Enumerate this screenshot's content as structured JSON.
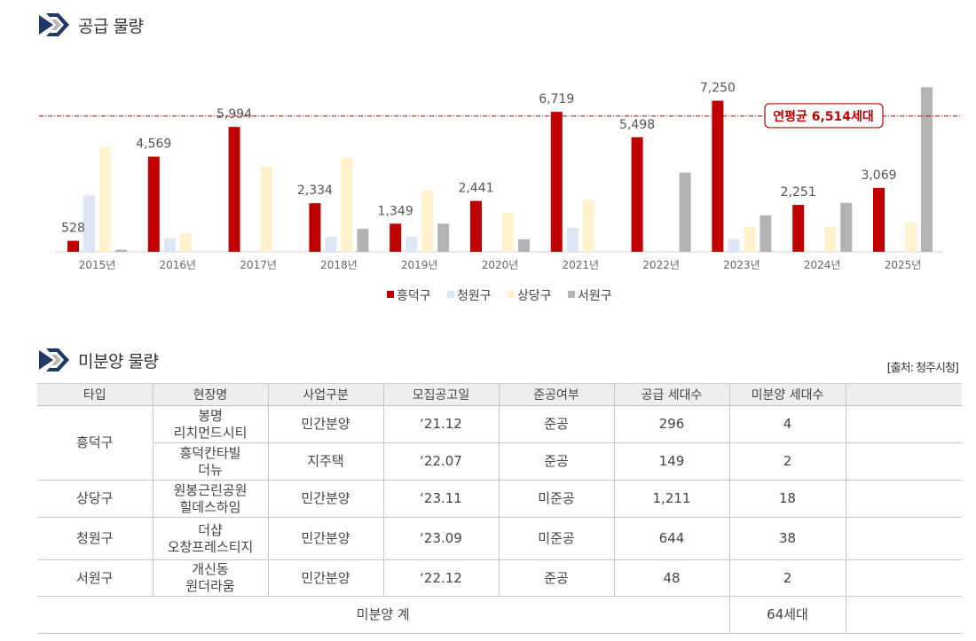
{
  "section1": {
    "title": "공급 물량"
  },
  "section2": {
    "title": "미분양 물량"
  },
  "source": "[출처: 청주시청]",
  "chart_data": {
    "type": "bar",
    "categories": [
      "2015년",
      "2016년",
      "2017년",
      "2018년",
      "2019년",
      "2020년",
      "2021년",
      "2022년",
      "2023년",
      "2024년",
      "2025년"
    ],
    "series": [
      {
        "name": "흥덕구",
        "color": "#c00000",
        "values": [
          528,
          4569,
          5994,
          2334,
          1349,
          2441,
          6719,
          5498,
          7250,
          2251,
          3069
        ]
      },
      {
        "name": "청원구",
        "color": "#dce6f4",
        "values": [
          2700,
          650,
          0,
          720,
          720,
          0,
          1150,
          0,
          600,
          0,
          0
        ]
      },
      {
        "name": "상당구",
        "color": "#fff2cc",
        "values": [
          5020,
          900,
          4100,
          4500,
          2950,
          1870,
          2500,
          0,
          1200,
          1200,
          1400
        ]
      },
      {
        "name": "서원구",
        "color": "#b3b3b3",
        "values": [
          100,
          0,
          0,
          1100,
          1350,
          600,
          0,
          3800,
          1750,
          2350,
          7900
        ]
      }
    ],
    "data_labels": [
      "528",
      "4,569",
      "5,994",
      "2,334",
      "1,349",
      "2,441",
      "6,719",
      "5,498",
      "7,250",
      "2,251",
      "3,069"
    ],
    "average": {
      "value": 6514,
      "label": "연평균 6,514세대",
      "color": "#c00000"
    },
    "legend_position": "bottom",
    "grid": false
  },
  "table": {
    "headers": [
      "타입",
      "현장명",
      "사업구분",
      "모집공고일",
      "준공여부",
      "공급 세대수",
      "미분양 세대수",
      ""
    ],
    "rows": [
      {
        "type": "흥덕구",
        "site": [
          "봉명",
          "리치먼드시티"
        ],
        "biz": "민간분양",
        "date": "‘21.12",
        "done": "준공",
        "supply": "296",
        "unsold": "4"
      },
      {
        "type": "",
        "site": [
          "흥덕칸타빌",
          "더뉴"
        ],
        "biz": "지주택",
        "date": "‘22.07",
        "done": "준공",
        "supply": "149",
        "unsold": "2"
      },
      {
        "type": "상당구",
        "site": [
          "원봉근린공원",
          "힐데스하임"
        ],
        "biz": "민간분양",
        "date": "‘23.11",
        "done": "미준공",
        "supply": "1,211",
        "unsold": "18"
      },
      {
        "type": "청원구",
        "site": [
          "더샵",
          "오창프레스티지"
        ],
        "biz": "민간분양",
        "date": "‘23.09",
        "done": "미준공",
        "supply": "644",
        "unsold": "38"
      },
      {
        "type": "서원구",
        "site": [
          "개신동",
          "원더라움"
        ],
        "biz": "민간분양",
        "date": "‘22.12",
        "done": "준공",
        "supply": "48",
        "unsold": "2"
      }
    ],
    "total_label": "미분양 계",
    "total_value": "64세대"
  }
}
